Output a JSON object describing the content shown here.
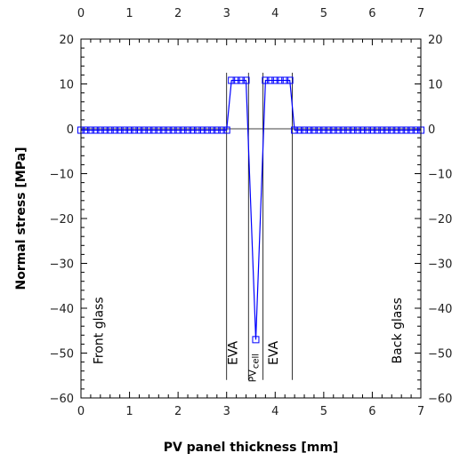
{
  "chart_data": {
    "type": "line",
    "title": "",
    "xlabel": "PV panel thickness [mm]",
    "ylabel": "Normal stress [MPa]",
    "xlim": [
      0,
      7
    ],
    "ylim": [
      -60,
      20
    ],
    "x_ticks": [
      0,
      1,
      2,
      3,
      4,
      5,
      6,
      7
    ],
    "y_ticks": [
      20,
      10,
      0,
      -10,
      -20,
      -30,
      -40,
      -50,
      -60
    ],
    "x_tick_labels": [
      "0",
      "1",
      "2",
      "3",
      "4",
      "5",
      "6",
      "7"
    ],
    "y_tick_labels": [
      "20",
      "10",
      "0",
      "−10",
      "−20",
      "−30",
      "−40",
      "−50",
      "−60"
    ],
    "grid": false,
    "layer_boundaries": [
      3.0,
      3.45,
      3.75,
      4.35
    ],
    "layers": [
      {
        "label": "Front glass",
        "x": 0.45,
        "y": -45
      },
      {
        "label": "EVA",
        "x": 3.22,
        "y": -50
      },
      {
        "label": "PV cell",
        "x": 3.6,
        "y": -52
      },
      {
        "label": "EVA",
        "x": 4.05,
        "y": -50
      },
      {
        "label": "Back glass",
        "x": 6.6,
        "y": -45
      }
    ],
    "series": [
      {
        "color": "#0000ff",
        "x": [
          0.0,
          0.1,
          0.2,
          0.3,
          0.4,
          0.5,
          0.6,
          0.7,
          0.8,
          0.9,
          1.0,
          1.1,
          1.2,
          1.3,
          1.4,
          1.5,
          1.6,
          1.7,
          1.8,
          1.9,
          2.0,
          2.1,
          2.2,
          2.3,
          2.4,
          2.5,
          2.6,
          2.7,
          2.8,
          2.9,
          3.0,
          3.1,
          3.2,
          3.3,
          3.4,
          3.6,
          3.8,
          3.9,
          4.0,
          4.1,
          4.2,
          4.3,
          4.4,
          4.5,
          4.6,
          4.7,
          4.8,
          4.9,
          5.0,
          5.1,
          5.2,
          5.3,
          5.4,
          5.5,
          5.6,
          5.7,
          5.8,
          5.9,
          6.0,
          6.1,
          6.2,
          6.3,
          6.4,
          6.5,
          6.6,
          6.7,
          6.8,
          6.9,
          7.0
        ],
        "y": [
          -0.3,
          -0.3,
          -0.3,
          -0.3,
          -0.3,
          -0.3,
          -0.3,
          -0.3,
          -0.3,
          -0.3,
          -0.3,
          -0.3,
          -0.3,
          -0.3,
          -0.3,
          -0.3,
          -0.3,
          -0.3,
          -0.3,
          -0.3,
          -0.3,
          -0.3,
          -0.3,
          -0.3,
          -0.3,
          -0.3,
          -0.3,
          -0.3,
          -0.3,
          -0.3,
          -0.3,
          10.8,
          10.8,
          10.8,
          10.8,
          -47.0,
          10.8,
          10.8,
          10.8,
          10.8,
          10.8,
          10.8,
          -0.3,
          -0.3,
          -0.3,
          -0.3,
          -0.3,
          -0.3,
          -0.3,
          -0.3,
          -0.3,
          -0.3,
          -0.3,
          -0.3,
          -0.3,
          -0.3,
          -0.3,
          -0.3,
          -0.3,
          -0.3,
          -0.3,
          -0.3,
          -0.3,
          -0.3,
          -0.3,
          -0.3,
          -0.3,
          -0.3,
          -0.3
        ]
      }
    ]
  }
}
